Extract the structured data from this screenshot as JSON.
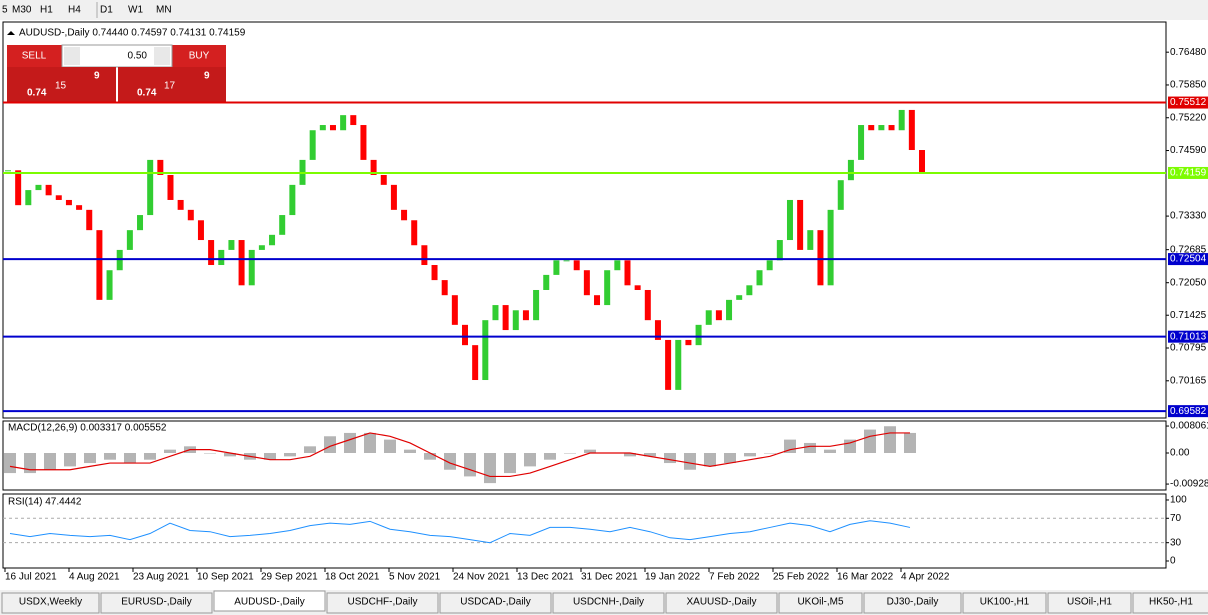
{
  "toolbar": {
    "timeframes": [
      "5",
      "M30",
      "H1",
      "H4",
      "D1",
      "W1",
      "MN"
    ]
  },
  "chart": {
    "header": "AUDUSD-,Daily  0.74440 0.74597 0.74131 0.74159",
    "ylim": [
      0.6945,
      0.7706
    ],
    "yticks": [
      {
        "value": 0.7648,
        "label": "0.76480"
      },
      {
        "value": 0.7585,
        "label": "0.75850"
      },
      {
        "value": 0.7522,
        "label": "0.75220"
      },
      {
        "value": 0.7459,
        "label": "0.74590"
      },
      {
        "value": 0.7333,
        "label": "0.73330"
      },
      0.72685,
      {
        "value": 0.7205,
        "label": "0.72050"
      },
      0.71425,
      0.70795,
      0.70165
    ],
    "up_color": "#32cd32",
    "down_color": "#ff0000",
    "candles": [
      0.7421,
      0.7354,
      0.7383,
      0.7393,
      0.7373,
      0.7364,
      0.7354,
      0.7345,
      0.7306,
      0.7172,
      0.7229,
      0.7268,
      0.7306,
      0.7335,
      0.7441,
      0.7412,
      0.7364,
      0.7345,
      0.7325,
      0.7287,
      0.7239,
      0.7268,
      0.7287,
      0.72,
      0.7268,
      0.7277,
      0.7297,
      0.7335,
      0.7393,
      0.7441,
      0.7498,
      0.7508,
      0.7498,
      0.7527,
      0.7508,
      0.7441,
      0.7412,
      0.7393,
      0.7345,
      0.7325,
      0.7277,
      0.7239,
      0.721,
      0.7181,
      0.7124,
      0.7085,
      0.7018,
      0.7133,
      0.7162,
      0.7114,
      0.7152,
      0.7133,
      0.7191,
      0.722,
      0.7248,
      0.7248,
      0.7229,
      0.7181,
      0.7162,
      0.7229,
      0.7248,
      0.72,
      0.7191,
      0.7133,
      0.7095,
      0.6999,
      0.7095,
      0.7085,
      0.7124,
      0.7152,
      0.7133,
      0.7172,
      0.7181,
      0.72,
      0.7229,
      0.7248,
      0.7287,
      0.7364,
      0.7268,
      0.7306,
      0.72,
      0.7345,
      0.7402,
      0.7441,
      0.7508,
      0.7498,
      0.7508,
      0.7498,
      0.7537,
      0.746,
      0.7416
    ],
    "levels": [
      {
        "value": 0.75512,
        "color": "#e00000"
      },
      {
        "value": 0.74159,
        "color": "#7cfc00"
      },
      {
        "value": 0.72504,
        "color": "#0000cd"
      },
      {
        "value": 0.71013,
        "color": "#0000cd"
      },
      {
        "value": 0.69582,
        "color": "#0000cd"
      }
    ],
    "dates": [
      "16 Jul 2021",
      "4 Aug 2021",
      "23 Aug 2021",
      "10 Sep 2021",
      "29 Sep 2021",
      "18 Oct 2021",
      "5 Nov 2021",
      "24 Nov 2021",
      "13 Dec 2021",
      "31 Dec 2021",
      "19 Jan 2022",
      "7 Feb 2022",
      "25 Feb 2022",
      "16 Mar 2022",
      "4 Apr 2022"
    ]
  },
  "trade_panel": {
    "sell": "SELL",
    "buy": "BUY",
    "lot": "0.50",
    "sell_price": {
      "prefix": "0.74",
      "big": "15",
      "sup": "9"
    },
    "buy_price": {
      "prefix": "0.74",
      "big": "17",
      "sup": "9"
    }
  },
  "macd": {
    "header": "MACD(12,26,9) 0.003317 0.005552",
    "ylim": [
      -0.01106,
      0.009567
    ],
    "yticks": [
      0.008061,
      {
        "value": 0,
        "label": "0.00"
      },
      -0.009286
    ],
    "hist_color": "#b4b4b4",
    "signal_color": "#e00000",
    "histogram": [
      -0.006,
      -0.006,
      -0.005,
      -0.004,
      -0.003,
      -0.002,
      -0.003,
      -0.002,
      0.001,
      0.002,
      0.0,
      -0.001,
      -0.002,
      -0.002,
      -0.001,
      0.002,
      0.005,
      0.006,
      0.006,
      0.004,
      0.001,
      -0.002,
      -0.005,
      -0.007,
      -0.009,
      -0.006,
      -0.004,
      -0.002,
      0.0,
      0.001,
      0.0,
      -0.001,
      -0.001,
      -0.003,
      -0.005,
      -0.004,
      -0.003,
      -0.001,
      0.0,
      0.004,
      0.003,
      0.001,
      0.004,
      0.007,
      0.008,
      0.006
    ],
    "signal": [
      -0.004,
      -0.005,
      -0.005,
      -0.005,
      -0.004,
      -0.003,
      -0.003,
      -0.003,
      -0.001,
      0.001,
      0.001,
      0.0,
      -0.001,
      -0.002,
      -0.002,
      -0.001,
      0.002,
      0.004,
      0.006,
      0.005,
      0.003,
      0.0,
      -0.003,
      -0.005,
      -0.007,
      -0.007,
      -0.006,
      -0.004,
      -0.002,
      0.0,
      0.0,
      0.0,
      -0.001,
      -0.002,
      -0.003,
      -0.004,
      -0.003,
      -0.002,
      -0.001,
      0.001,
      0.002,
      0.002,
      0.003,
      0.005,
      0.006,
      0.006
    ]
  },
  "rsi": {
    "header": "RSI(14) 47.4442",
    "ylim": [
      -11.5,
      109.8
    ],
    "yticks": [
      100,
      70,
      30,
      0
    ],
    "levels": [
      70,
      30
    ],
    "color": "#1e90ff",
    "values": [
      45,
      40,
      45,
      42,
      40,
      42,
      35,
      45,
      62,
      50,
      48,
      40,
      42,
      45,
      50,
      58,
      62,
      60,
      65,
      52,
      48,
      42,
      40,
      35,
      30,
      45,
      42,
      55,
      55,
      52,
      48,
      55,
      48,
      38,
      35,
      40,
      45,
      48,
      55,
      62,
      58,
      48,
      60,
      66,
      62,
      55
    ]
  },
  "tabs": [
    "USDX,Weekly",
    "EURUSD-,Daily",
    "AUDUSD-,Daily",
    "USDCHF-,Daily",
    "USDCAD-,Daily",
    "USDCNH-,Daily",
    "XAUUSD-,Daily",
    "UKOil-,M5",
    "DJ30-,Daily",
    "UK100-,H1",
    "USOil-,H1",
    "HK50-,H1"
  ],
  "active_tab": 2
}
